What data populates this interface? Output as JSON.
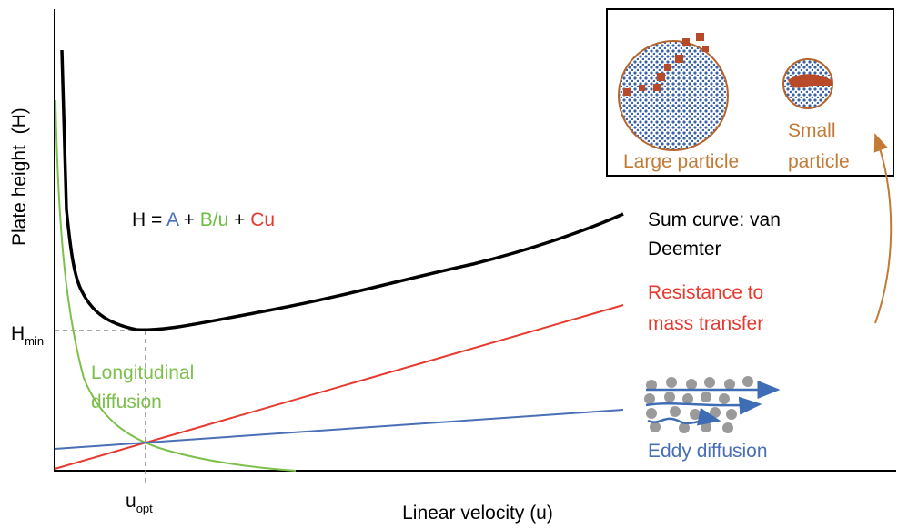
{
  "axes": {
    "y_label": "Plate height  (H)",
    "x_label": "Linear velocity (u)"
  },
  "markers": {
    "h_min": {
      "base": "H",
      "sub": "min"
    },
    "u_opt": {
      "base": "u",
      "sub": "opt"
    }
  },
  "equation": [
    "H = ",
    "A",
    " + ",
    "B/u",
    " + ",
    "Cu"
  ],
  "curve_labels": {
    "sum": [
      "Sum curve: van",
      "Deemter"
    ],
    "resistance": [
      "Resistance to",
      "mass transfer"
    ],
    "longitudinal": [
      "Longitudinal",
      "diffusion"
    ],
    "eddy": "Eddy diffusion"
  },
  "inset": {
    "large": "Large particle",
    "small": [
      "Small",
      "particle"
    ]
  }
}
